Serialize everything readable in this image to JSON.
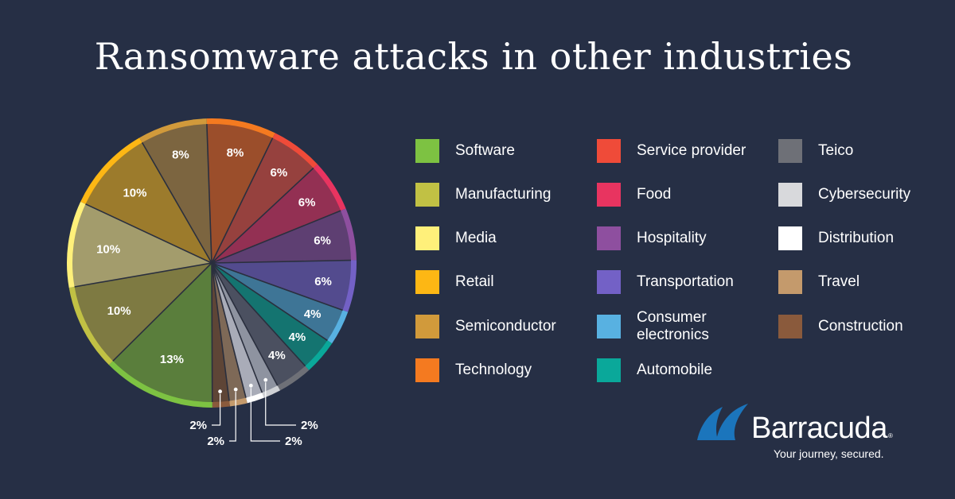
{
  "title": "Ransomware attacks in other industries",
  "chart_data": {
    "type": "pie",
    "title": "Ransomware attacks in other industries",
    "slices": [
      {
        "label": "Technology",
        "value": 8,
        "display": "8%",
        "color": "#f47a20",
        "inner": "#9b4e2b"
      },
      {
        "label": "Service provider",
        "value": 6,
        "display": "6%",
        "color": "#ef4b39",
        "inner": "#96413e"
      },
      {
        "label": "Food",
        "value": 6,
        "display": "6%",
        "color": "#e83460",
        "inner": "#933053"
      },
      {
        "label": "Hospitality",
        "value": 6,
        "display": "6%",
        "color": "#8e4f9f",
        "inner": "#5e3f72"
      },
      {
        "label": "Transportation",
        "value": 6,
        "display": "6%",
        "color": "#7361c6",
        "inner": "#534b8e"
      },
      {
        "label": "Consumer electronics",
        "value": 4,
        "display": "4%",
        "color": "#58b1e1",
        "inner": "#3e7596"
      },
      {
        "label": "Automobile",
        "value": 4,
        "display": "4%",
        "color": "#0aa89a",
        "inner": "#147470"
      },
      {
        "label": "Teico",
        "value": 4,
        "display": "4%",
        "color": "#6e7077",
        "inner": "#4b5060"
      },
      {
        "label": "Cybersecurity",
        "value": 2,
        "display": "2%",
        "color": "#cfd1d5",
        "inner": "#8e93a0"
      },
      {
        "label": "Distribution",
        "value": 2,
        "display": "2%",
        "color": "#ffffff",
        "inner": "#a9acb8"
      },
      {
        "label": "Travel",
        "value": 2,
        "display": "2%",
        "color": "#c49a6c",
        "inner": "#7e6957"
      },
      {
        "label": "Construction",
        "value": 2,
        "display": "2%",
        "color": "#8a5a3c",
        "inner": "#5e4536"
      },
      {
        "label": "Software",
        "value": 13,
        "display": "13%",
        "color": "#7dc242",
        "inner": "#5a7e3c"
      },
      {
        "label": "Manufacturing",
        "value": 10,
        "display": "10%",
        "color": "#c1c144",
        "inner": "#7e7a42"
      },
      {
        "label": "Media",
        "value": 10,
        "display": "10%",
        "color": "#fff07a",
        "inner": "#a39c6c"
      },
      {
        "label": "Retail",
        "value": 10,
        "display": "10%",
        "color": "#fdb714",
        "inner": "#9c7b2c"
      },
      {
        "label": "Semiconductor",
        "value": 8,
        "display": "8%",
        "color": "#d19a3b",
        "inner": "#7c6540"
      }
    ]
  },
  "legend": [
    [
      {
        "label": "Software",
        "color": "#7dc242"
      },
      {
        "label": "Manufacturing",
        "color": "#c1c144"
      },
      {
        "label": "Media",
        "color": "#fff07a"
      },
      {
        "label": "Retail",
        "color": "#fdb714"
      },
      {
        "label": "Semiconductor",
        "color": "#d19a3b"
      },
      {
        "label": "Technology",
        "color": "#f47a20"
      }
    ],
    [
      {
        "label": "Service provider",
        "color": "#ef4b39"
      },
      {
        "label": "Food",
        "color": "#e83460"
      },
      {
        "label": "Hospitality",
        "color": "#8e4f9f"
      },
      {
        "label": "Transportation",
        "color": "#7361c6"
      },
      {
        "label": "Consumer\nelectronics",
        "color": "#58b1e1"
      },
      {
        "label": "Automobile",
        "color": "#0aa89a"
      }
    ],
    [
      {
        "label": "Teico",
        "color": "#6e7077"
      },
      {
        "label": "Cybersecurity",
        "color": "#d8d9dc"
      },
      {
        "label": "Distribution",
        "color": "#ffffff"
      },
      {
        "label": "Travel",
        "color": "#c49a6c"
      },
      {
        "label": "Construction",
        "color": "#8a5a3c"
      }
    ]
  ],
  "brand": {
    "name": "Barracuda",
    "registered": "®",
    "tagline": "Your journey, secured."
  },
  "colors": {
    "background": "#262f45",
    "brand_blue": "#1b75bc",
    "text": "#ffffff"
  }
}
